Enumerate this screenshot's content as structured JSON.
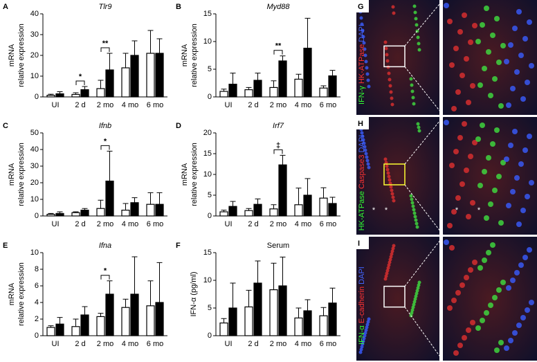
{
  "chart_data": [
    {
      "type": "bar",
      "panel": "A",
      "title": "Tlr9",
      "title_italic": true,
      "ylabel": [
        "mRNA",
        "relative expression"
      ],
      "categories": [
        "UI",
        "2 d",
        "2 mo",
        "4 mo",
        "6 mo"
      ],
      "series": [
        {
          "color": "#ffffff",
          "values": [
            0.8,
            1.2,
            4,
            14,
            21
          ],
          "errors": [
            0.5,
            0.8,
            4,
            7,
            11
          ]
        },
        {
          "color": "#000000",
          "values": [
            1.5,
            3.5,
            13,
            20,
            21
          ],
          "errors": [
            1,
            1.5,
            8,
            7,
            7
          ]
        }
      ],
      "ylim": [
        0,
        40
      ],
      "yticks": [
        0,
        10,
        20,
        30,
        40
      ],
      "annotations": [
        {
          "text": "*",
          "category": "2 d"
        },
        {
          "text": "**",
          "category": "2 mo"
        }
      ]
    },
    {
      "type": "bar",
      "panel": "B",
      "title": "Myd88",
      "title_italic": true,
      "ylabel": [
        "mRNA",
        "relative expression"
      ],
      "categories": [
        "UI",
        "2 d",
        "2 mo",
        "4 mo",
        "6 mo"
      ],
      "series": [
        {
          "color": "#ffffff",
          "values": [
            1,
            1.3,
            1.7,
            3.2,
            1.6
          ],
          "errors": [
            0.4,
            0.4,
            1.2,
            0.9,
            0.4
          ]
        },
        {
          "color": "#000000",
          "values": [
            2.3,
            3,
            6.5,
            8.8,
            3.8
          ],
          "errors": [
            2,
            1.3,
            0.9,
            5.4,
            1
          ]
        }
      ],
      "ylim": [
        0,
        15
      ],
      "yticks": [
        0,
        5,
        10,
        15
      ],
      "annotations": [
        {
          "text": "**",
          "category": "2 mo"
        }
      ]
    },
    {
      "type": "bar",
      "panel": "C",
      "title": "Ifnb",
      "title_italic": true,
      "ylabel": [
        "mRNA",
        "relative expression"
      ],
      "categories": [
        "UI",
        "2 d",
        "2 mo",
        "4 mo",
        "6 mo"
      ],
      "series": [
        {
          "color": "#ffffff",
          "values": [
            1,
            2,
            4.5,
            3.5,
            7
          ],
          "errors": [
            0.5,
            0.5,
            5,
            4,
            7
          ]
        },
        {
          "color": "#000000",
          "values": [
            1.5,
            3.5,
            21,
            8,
            7
          ],
          "errors": [
            1,
            1,
            18,
            3,
            7
          ]
        }
      ],
      "ylim": [
        0,
        50
      ],
      "yticks": [
        0,
        10,
        20,
        30,
        40,
        50
      ],
      "annotations": [
        {
          "text": "*",
          "category": "2 mo"
        }
      ]
    },
    {
      "type": "bar",
      "panel": "D",
      "title": "Irf7",
      "title_italic": true,
      "ylabel": [
        "mRNA",
        "relative expression"
      ],
      "categories": [
        "UI",
        "2 d",
        "2 mo",
        "4 mo",
        "6 mo"
      ],
      "series": [
        {
          "color": "#ffffff",
          "values": [
            1,
            1.3,
            1.7,
            2.7,
            4.3
          ],
          "errors": [
            0.4,
            0.5,
            1,
            4,
            2.5
          ]
        },
        {
          "color": "#000000",
          "values": [
            2.3,
            2.8,
            12.3,
            5,
            3
          ],
          "errors": [
            1.2,
            1.3,
            2.3,
            4,
            1.5
          ]
        }
      ],
      "ylim": [
        0,
        20
      ],
      "yticks": [
        0,
        5,
        10,
        15,
        20
      ],
      "annotations": [
        {
          "text": "‡",
          "category": "2 mo"
        }
      ]
    },
    {
      "type": "bar",
      "panel": "E",
      "title": "Ifna",
      "title_italic": true,
      "ylabel": [
        "mRNA",
        "relative expression"
      ],
      "categories": [
        "UI",
        "2 d",
        "2 mo",
        "4 mo",
        "6 mo"
      ],
      "series": [
        {
          "color": "#ffffff",
          "values": [
            1,
            1.1,
            2.3,
            3.4,
            3.6
          ],
          "errors": [
            0.2,
            0.9,
            0.4,
            1,
            3
          ]
        },
        {
          "color": "#000000",
          "values": [
            1.4,
            2.5,
            5,
            5,
            4
          ],
          "errors": [
            0.8,
            1,
            1.6,
            4.5,
            4.8
          ]
        }
      ],
      "ylim": [
        0,
        10
      ],
      "yticks": [
        0,
        2,
        4,
        6,
        8,
        10
      ],
      "annotations": [
        {
          "text": "*",
          "category": "2 mo"
        }
      ]
    },
    {
      "type": "bar",
      "panel": "F",
      "title": "Serum",
      "title_italic": false,
      "ylabel": [
        "IFN-α (pg/ml)"
      ],
      "categories": [
        "UI",
        "2 d",
        "2 mo",
        "4 mo",
        "6 mo"
      ],
      "series": [
        {
          "color": "#ffffff",
          "values": [
            2.3,
            5.2,
            8.3,
            3.2,
            3.6
          ],
          "errors": [
            0.8,
            3,
            4.8,
            1.8,
            1.5
          ]
        },
        {
          "color": "#000000",
          "values": [
            5,
            9.5,
            9,
            4.5,
            5.9
          ],
          "errors": [
            4.5,
            4,
            5.2,
            2,
            2.7
          ]
        }
      ],
      "ylim": [
        0,
        15
      ],
      "yticks": [
        0,
        5,
        10,
        15
      ],
      "annotations": []
    }
  ],
  "images": [
    {
      "panel": "G",
      "stain": [
        {
          "text": "IFN-γ",
          "color": "#33ff33"
        },
        {
          "text": "HK-ATPase",
          "color": "#ff3333"
        },
        {
          "text": "DAPI",
          "color": "#4466ff"
        }
      ],
      "marks": []
    },
    {
      "panel": "H",
      "stain": [
        {
          "text": "HK-ATPase",
          "color": "#33ff33"
        },
        {
          "text": "Caspase3",
          "color": "#ff3333"
        },
        {
          "text": "DAPI",
          "color": "#4466ff"
        }
      ],
      "marks": [
        "*",
        "*",
        "*",
        "*"
      ]
    },
    {
      "panel": "I",
      "stain": [
        {
          "text": "IFN-α",
          "color": "#33ff33"
        },
        {
          "text": "E-cadherin",
          "color": "#ff3333"
        },
        {
          "text": "DAPI",
          "color": "#4466ff"
        }
      ],
      "marks": []
    }
  ]
}
